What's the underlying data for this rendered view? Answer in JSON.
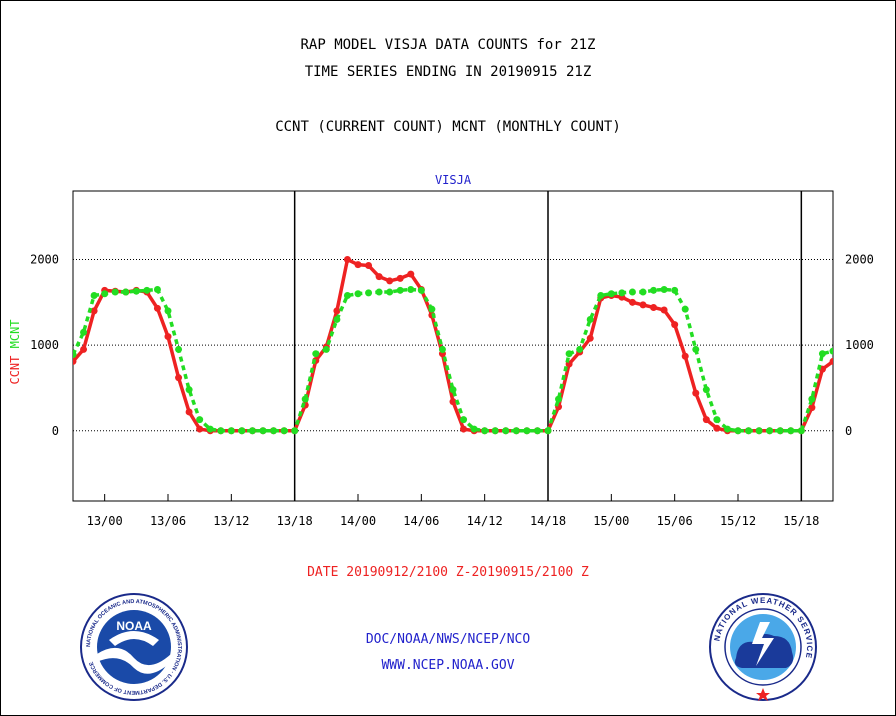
{
  "header": {
    "title1": "RAP MODEL VISJA DATA COUNTS for 21Z",
    "title2": "TIME SERIES ENDING IN 20190915 21Z",
    "subtitle": "CCNT (CURRENT COUNT) MCNT (MONTHLY COUNT)"
  },
  "footer": {
    "date_range": "DATE 20190912/2100 Z-20190915/2100 Z",
    "org": "DOC/NOAA/NWS/NCEP/NCO",
    "url": "WWW.NCEP.NOAA.GOV"
  },
  "logos": {
    "noaa": "NOAA",
    "noaa_ring": "NATIONAL OCEANIC AND ATMOSPHERIC ADMINISTRATION · U.S. DEPARTMENT OF COMMERCE",
    "nws_ring": "NATIONAL WEATHER SERVICE"
  },
  "colors": {
    "ccnt": "#ee2222",
    "mcnt": "#22dd22",
    "panel_title": "#2222cc",
    "footer": "#2222cc"
  },
  "chart_data": {
    "type": "line",
    "panel_title": "VISJA",
    "ylabel_ccnt": "CCNT",
    "ylabel_mcnt": "MCNT",
    "ylim": [
      -820,
      2800
    ],
    "xlim": [
      0,
      72
    ],
    "yticks": [
      0,
      1000,
      2000
    ],
    "ytick_labels": [
      "0",
      "1000",
      "2000"
    ],
    "xticks": [
      3,
      9,
      15,
      21,
      27,
      33,
      39,
      45,
      51,
      57,
      63,
      69
    ],
    "xtick_labels": [
      "13/00",
      "13/06",
      "13/12",
      "13/18",
      "14/00",
      "14/06",
      "14/12",
      "14/18",
      "15/00",
      "15/06",
      "15/12",
      "15/18"
    ],
    "day_separators": [
      21,
      45,
      69
    ],
    "grid_y": [
      0,
      1000,
      2000
    ],
    "series": [
      {
        "name": "CCNT",
        "values": [
          810,
          950,
          1400,
          1640,
          1630,
          1620,
          1640,
          1620,
          1430,
          1100,
          620,
          220,
          20,
          0,
          0,
          0,
          0,
          0,
          0,
          0,
          0,
          0,
          300,
          820,
          980,
          1400,
          2000,
          1940,
          1930,
          1800,
          1750,
          1780,
          1830,
          1650,
          1350,
          900,
          340,
          20,
          0,
          0,
          0,
          0,
          0,
          0,
          0,
          0,
          280,
          780,
          920,
          1080,
          1550,
          1580,
          1560,
          1500,
          1470,
          1440,
          1410,
          1240,
          870,
          440,
          130,
          30,
          0,
          0,
          0,
          0,
          0,
          0,
          0,
          0,
          270,
          720,
          810
        ]
      },
      {
        "name": "MCNT",
        "values": [
          890,
          1150,
          1580,
          1600,
          1620,
          1620,
          1630,
          1640,
          1650,
          1400,
          950,
          480,
          130,
          20,
          0,
          0,
          0,
          0,
          0,
          0,
          0,
          0,
          370,
          900,
          950,
          1300,
          1580,
          1600,
          1610,
          1620,
          1620,
          1640,
          1650,
          1640,
          1420,
          950,
          480,
          130,
          20,
          0,
          0,
          0,
          0,
          0,
          0,
          0,
          370,
          900,
          950,
          1300,
          1580,
          1600,
          1610,
          1620,
          1620,
          1640,
          1650,
          1640,
          1420,
          950,
          480,
          130,
          20,
          0,
          0,
          0,
          0,
          0,
          0,
          0,
          370,
          900,
          930
        ]
      }
    ]
  }
}
